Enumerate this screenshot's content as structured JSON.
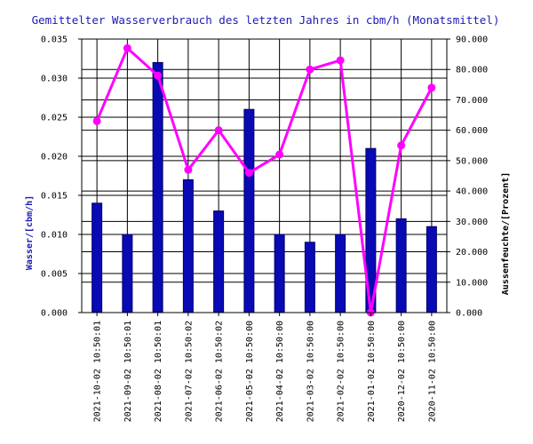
{
  "colors": {
    "bar_fill": "#0a0ab4",
    "bar_stroke": "#000066",
    "line": "#ff00ff",
    "title": "#1a1ab8",
    "grid": "#000000",
    "background": "#ffffff"
  },
  "chart_data": {
    "type": "bar",
    "title": "Gemittelter Wasserverbrauch des letzten Jahres in cbm/h (Monatsmittel)",
    "xlabel": "",
    "ylabel": "Wasser/[cbm/h]",
    "y2label": "Aussenfeuchte/[Prozent]",
    "categories": [
      "2021-10-02 10:50:01",
      "2021-09-02 10:50:01",
      "2021-08-02 10:50:01",
      "2021-07-02 10:50:02",
      "2021-06-02 10:50:02",
      "2021-05-02 10:50:00",
      "2021-04-02 10:50:00",
      "2021-03-02 10:50:00",
      "2021-02-02 10:50:00",
      "2021-01-02 10:50:00",
      "2020-12-02 10:50:00",
      "2020-11-02 10:50:00"
    ],
    "ylim": [
      0,
      0.035
    ],
    "y2lim": [
      0,
      90
    ],
    "yticks": [
      "0.000",
      "0.005",
      "0.010",
      "0.015",
      "0.020",
      "0.025",
      "0.030",
      "0.035"
    ],
    "y2ticks": [
      "0.000",
      "10.000",
      "20.000",
      "30.000",
      "40.000",
      "50.000",
      "60.000",
      "70.000",
      "80.000",
      "90.000"
    ],
    "grid": true,
    "series": [
      {
        "type": "bar",
        "axis": "left",
        "values": [
          0.014,
          0.01,
          0.032,
          0.017,
          0.013,
          0.026,
          0.01,
          0.009,
          0.01,
          0.021,
          0.012,
          0.011
        ]
      },
      {
        "type": "line",
        "axis": "right",
        "values": [
          63,
          87,
          78,
          47,
          60,
          46,
          52,
          80,
          83,
          0,
          55,
          74
        ]
      }
    ]
  }
}
